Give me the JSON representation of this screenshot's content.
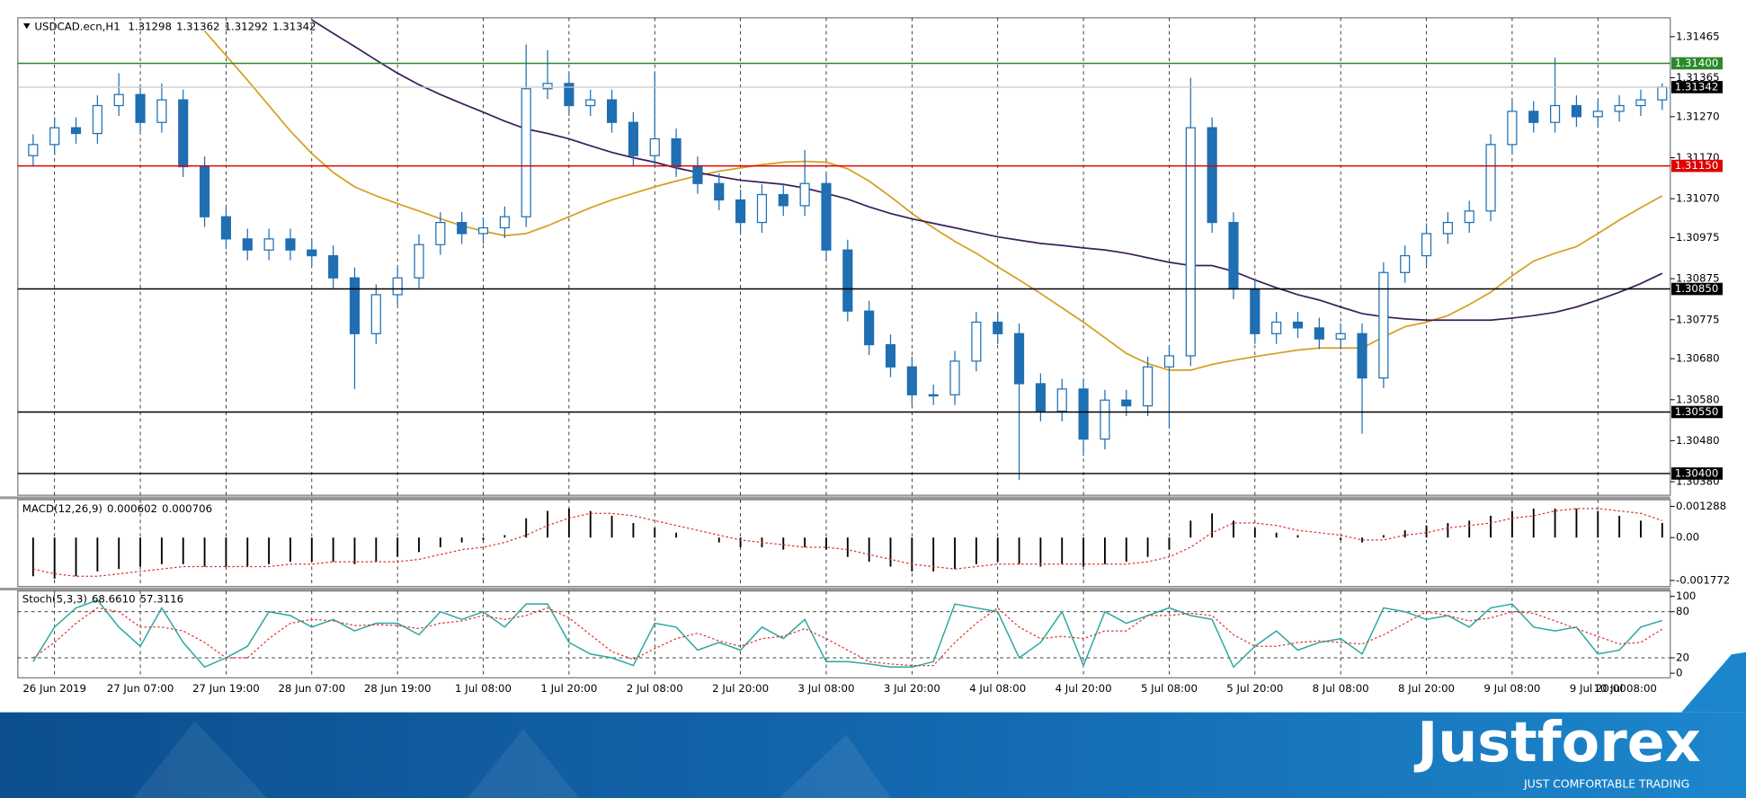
{
  "chart_data": [
    {
      "type": "candlestick",
      "symbol": "USDCAD.ecn,H1",
      "readout": [
        1.31298,
        1.31362,
        1.31292,
        1.31342
      ],
      "categories": [
        null,
        "26 Jun 2019",
        null,
        null,
        null,
        "27 Jun 07:00",
        null,
        null,
        null,
        "27 Jun 19:00",
        null,
        null,
        null,
        "28 Jun 07:00",
        null,
        null,
        null,
        "28 Jun 19:00",
        null,
        null,
        null,
        "1 Jul 08:00",
        null,
        null,
        null,
        "1 Jul 20:00",
        null,
        null,
        null,
        "2 Jul 08:00",
        null,
        null,
        null,
        "2 Jul 20:00",
        null,
        null,
        null,
        "3 Jul 08:00",
        null,
        null,
        null,
        "3 Jul 20:00",
        null,
        null,
        null,
        "4 Jul 08:00",
        null,
        null,
        null,
        "4 Jul 20:00",
        null,
        null,
        null,
        "5 Jul 08:00",
        null,
        null,
        null,
        "5 Jul 20:00",
        null,
        null,
        null,
        "8 Jul 08:00",
        null,
        null,
        null,
        "8 Jul 20:00",
        null,
        null,
        null,
        "9 Jul 08:00",
        null,
        null,
        null,
        "9 Jul 20:00",
        null,
        null,
        null,
        "10 Jul 08:00"
      ],
      "open": [
        1.31175,
        1.31202,
        1.31243,
        1.31229,
        1.31297,
        1.31324,
        1.31256,
        1.31311,
        1.31148,
        1.31026,
        1.30972,
        1.30945,
        1.30972,
        1.30945,
        1.30931,
        1.30877,
        1.30741,
        1.30836,
        1.30877,
        1.30958,
        1.31012,
        1.30985,
        1.30999,
        1.31026,
        1.31338,
        1.31351,
        1.31297,
        1.31311,
        1.31256,
        1.31175,
        1.31216,
        1.31148,
        1.31107,
        1.31067,
        1.31012,
        1.3108,
        1.31053,
        1.31107,
        1.30945,
        1.30796,
        1.30714,
        1.3066,
        1.30592,
        1.30592,
        1.30674,
        1.30769,
        1.30741,
        1.30619,
        1.30552,
        1.30606,
        1.30484,
        1.30579,
        1.30565,
        1.3066,
        1.30687,
        1.31243,
        1.31012,
        1.3085,
        1.30741,
        1.30769,
        1.30755,
        1.30728,
        1.30741,
        1.30633,
        1.3089,
        1.30931,
        1.30985,
        1.31012,
        1.3104,
        1.31202,
        1.31283,
        1.31256,
        1.31297,
        1.3127,
        1.31283,
        1.31297,
        1.31311,
        null
      ],
      "high": [
        1.31227,
        1.31268,
        1.31268,
        1.31322,
        1.31376,
        1.31349,
        1.31351,
        1.31336,
        1.31173,
        1.31051,
        1.30997,
        1.30997,
        1.30997,
        1.3097,
        1.30956,
        1.30902,
        1.30861,
        1.30902,
        1.30983,
        1.31037,
        1.31037,
        1.31024,
        1.31051,
        1.31446,
        1.31432,
        1.31376,
        1.31336,
        1.31336,
        1.31281,
        1.31378,
        1.31241,
        1.31173,
        1.31132,
        1.31092,
        1.31105,
        1.31105,
        1.31189,
        1.31132,
        1.3097,
        1.30821,
        1.30739,
        1.30685,
        1.30617,
        1.30699,
        1.30794,
        1.30794,
        1.30766,
        1.30644,
        1.30631,
        1.30631,
        1.30604,
        1.30604,
        1.30685,
        1.30712,
        1.31365,
        1.31268,
        1.31037,
        1.30875,
        1.30794,
        1.30794,
        1.3078,
        1.30766,
        1.30766,
        1.30915,
        1.30956,
        1.3101,
        1.31037,
        1.31065,
        1.31227,
        1.31308,
        1.31308,
        1.31414,
        1.31322,
        1.31308,
        1.31322,
        1.31336,
        1.31351,
        null
      ],
      "low": [
        1.3115,
        1.31177,
        1.31204,
        1.31204,
        1.31272,
        1.31231,
        1.31231,
        1.31123,
        1.31001,
        1.30947,
        1.3092,
        1.3092,
        1.3092,
        1.30906,
        1.30852,
        1.30606,
        1.30716,
        1.30811,
        1.30852,
        1.30933,
        1.3096,
        1.3096,
        1.30974,
        1.31001,
        1.31313,
        1.31272,
        1.31272,
        1.31231,
        1.3115,
        1.3115,
        1.31123,
        1.31082,
        1.31042,
        1.30987,
        1.30987,
        1.31028,
        1.31028,
        1.3092,
        1.30771,
        1.30689,
        1.30635,
        1.30567,
        1.30567,
        1.30567,
        1.30649,
        1.30716,
        1.30384,
        1.30527,
        1.30527,
        1.30443,
        1.30459,
        1.3054,
        1.3054,
        1.30511,
        1.30662,
        1.30987,
        1.30825,
        1.30716,
        1.30716,
        1.3073,
        1.30703,
        1.30703,
        1.30497,
        1.30608,
        1.30865,
        1.30906,
        1.3096,
        1.30987,
        1.31015,
        1.31177,
        1.31231,
        1.31231,
        1.31245,
        1.31245,
        1.31258,
        1.31272,
        1.31286,
        null
      ],
      "close": [
        1.31202,
        1.31243,
        1.31229,
        1.31297,
        1.31324,
        1.31256,
        1.31311,
        1.31148,
        1.31026,
        1.30972,
        1.30945,
        1.30972,
        1.30945,
        1.30931,
        1.30877,
        1.30741,
        1.30836,
        1.30877,
        1.30958,
        1.31012,
        1.30985,
        1.30999,
        1.31026,
        1.31338,
        1.31351,
        1.31297,
        1.31311,
        1.31256,
        1.31175,
        1.31216,
        1.31148,
        1.31107,
        1.31067,
        1.31012,
        1.3108,
        1.31053,
        1.31107,
        1.30945,
        1.30796,
        1.30714,
        1.3066,
        1.30592,
        1.30592,
        1.30674,
        1.30769,
        1.30741,
        1.30619,
        1.30552,
        1.30606,
        1.30484,
        1.30579,
        1.30565,
        1.3066,
        1.30687,
        1.31243,
        1.31012,
        1.3085,
        1.30741,
        1.30769,
        1.30755,
        1.30728,
        1.30741,
        1.30633,
        1.3089,
        1.30931,
        1.30985,
        1.31012,
        1.3104,
        1.31202,
        1.31283,
        1.31256,
        1.31297,
        1.3127,
        1.31283,
        1.31297,
        1.31311,
        1.31342,
        null
      ],
      "candle_color": "#1f6fb2",
      "series": [
        {
          "color": "#d4a020",
          "values": [
            null,
            null,
            null,
            null,
            null,
            null,
            null,
            null,
            1.31479,
            1.31419,
            1.31359,
            1.31297,
            1.31235,
            1.3118,
            1.31134,
            1.31099,
            1.31077,
            1.31058,
            1.3104,
            1.31021,
            1.31004,
            1.30991,
            1.3098,
            1.30985,
            1.31004,
            1.31026,
            1.31048,
            1.31067,
            1.31083,
            1.31099,
            1.31113,
            1.31126,
            1.31137,
            1.31145,
            1.31153,
            1.31159,
            1.31161,
            1.31159,
            1.31143,
            1.31113,
            1.31075,
            1.31034,
            1.30999,
            1.30966,
            1.30937,
            1.30904,
            1.30872,
            1.30839,
            1.30804,
            1.30769,
            1.30731,
            1.30693,
            1.30668,
            1.30652,
            1.30652,
            1.30666,
            1.30676,
            1.30685,
            1.30693,
            1.30701,
            1.30706,
            1.30706,
            1.30706,
            1.30733,
            1.30758,
            1.30769,
            1.30785,
            1.30812,
            1.30842,
            1.30882,
            1.30918,
            1.30937,
            1.30953,
            1.30985,
            1.31018,
            1.31048,
            1.31077,
            null
          ]
        },
        {
          "color": "#3c1f5c",
          "values": [
            null,
            null,
            null,
            null,
            null,
            null,
            null,
            null,
            null,
            null,
            null,
            null,
            null,
            1.31506,
            1.31473,
            1.31441,
            1.31408,
            1.31376,
            1.31348,
            1.31324,
            1.31302,
            1.31281,
            1.31259,
            1.3124,
            1.31229,
            1.31216,
            1.31199,
            1.31183,
            1.3117,
            1.31159,
            1.31145,
            1.31134,
            1.31124,
            1.31115,
            1.3111,
            1.31105,
            1.31096,
            1.31083,
            1.31069,
            1.3105,
            1.31034,
            1.31021,
            1.3101,
            1.30999,
            1.30988,
            1.30977,
            1.30969,
            1.30961,
            1.30956,
            1.3095,
            1.30945,
            1.30937,
            1.30926,
            1.30915,
            1.30907,
            1.30907,
            1.30893,
            1.30872,
            1.30853,
            1.30836,
            1.30823,
            1.30806,
            1.3079,
            1.30782,
            1.30777,
            1.30774,
            1.30774,
            1.30774,
            1.30774,
            1.30779,
            1.30785,
            1.30793,
            1.30806,
            1.30823,
            1.30842,
            1.30863,
            1.30888,
            null
          ]
        }
      ],
      "ylim": [
        1.30347,
        1.31511
      ],
      "yticks": [
        1.31465,
        1.31365,
        {
          "value": 1.3127,
          "label": "1.31270"
        },
        {
          "value": 1.3117,
          "label": "1.31170"
        },
        {
          "value": 1.3107,
          "label": "1.31070"
        },
        1.30975,
        1.30875,
        1.30775,
        {
          "value": 1.3068,
          "label": "1.30680"
        },
        {
          "value": 1.3058,
          "label": "1.30580"
        },
        {
          "value": 1.3048,
          "label": "1.30480"
        },
        {
          "value": 1.3038,
          "label": "1.30380"
        }
      ],
      "levels": [
        {
          "value": 1.314,
          "label": "1.31400",
          "color": "#2a8a2a"
        },
        {
          "value": 1.3115,
          "label": "1.31150",
          "color": "#e00000"
        },
        {
          "value": 1.3085,
          "label": "1.30850",
          "color": "#000000"
        },
        {
          "value": 1.3055,
          "label": "1.30550",
          "color": "#000000"
        },
        {
          "value": 1.304,
          "label": "1.30400",
          "color": "#000000"
        }
      ],
      "last_price": 1.31342,
      "grid": true
    },
    {
      "type": "macd",
      "title": "MACD(12,26,9)",
      "readout": [
        0.000602,
        0.000706
      ],
      "histogram": [
        -0.0016,
        -0.0017,
        -0.0016,
        -0.0014,
        -0.0013,
        -0.0012,
        -0.0011,
        -0.0011,
        -0.0012,
        -0.0012,
        -0.0012,
        -0.0011,
        -0.001,
        -0.001,
        -0.001,
        -0.0011,
        -0.001,
        -0.0008,
        -0.0006,
        -0.0004,
        -0.0002,
        -0.0001,
        0.0001,
        0.0008,
        0.0011,
        0.0012,
        0.0011,
        0.0009,
        0.0006,
        0.0004,
        0.0002,
        0,
        -0.0002,
        -0.0004,
        -0.0004,
        -0.0005,
        -0.0004,
        -0.0005,
        -0.0008,
        -0.001,
        -0.0012,
        -0.0014,
        -0.0014,
        -0.0013,
        -0.0011,
        -0.001,
        -0.0011,
        -0.0012,
        -0.0011,
        -0.0012,
        -0.0011,
        -0.001,
        -0.0008,
        -0.0005,
        0.0007,
        0.001,
        0.0007,
        0.0004,
        0.0002,
        0.0001,
        0,
        -0.0001,
        -0.0002,
        0.0001,
        0.0003,
        0.0005,
        0.0006,
        0.0007,
        0.0009,
        0.0011,
        0.0012,
        0.0012,
        0.0012,
        0.0011,
        0.0009,
        0.0007,
        0.000602,
        null
      ],
      "signal": [
        -0.0013,
        -0.0015,
        -0.0016,
        -0.0016,
        -0.0015,
        -0.0014,
        -0.0013,
        -0.0012,
        -0.0012,
        -0.0012,
        -0.0012,
        -0.0012,
        -0.0011,
        -0.0011,
        -0.001,
        -0.001,
        -0.001,
        -0.001,
        -0.0009,
        -0.0007,
        -0.0005,
        -0.0004,
        -0.0002,
        0.0001,
        0.0005,
        0.0008,
        0.001,
        0.001,
        0.0009,
        0.0007,
        0.0005,
        0.0003,
        0.0001,
        -0.0001,
        -0.0002,
        -0.0003,
        -0.0004,
        -0.0004,
        -0.0005,
        -0.0007,
        -0.0009,
        -0.0011,
        -0.0012,
        -0.0013,
        -0.0012,
        -0.0011,
        -0.0011,
        -0.0011,
        -0.0011,
        -0.0011,
        -0.0011,
        -0.0011,
        -0.001,
        -0.0008,
        -0.0004,
        0.0002,
        0.0006,
        0.0006,
        0.0005,
        0.0003,
        0.0002,
        0.0001,
        -0.0001,
        -0.0001,
        0.0001,
        0.0002,
        0.0004,
        0.0005,
        0.0006,
        0.0008,
        0.0009,
        0.0011,
        0.0012,
        0.0012,
        0.0011,
        0.001,
        0.000706,
        null
      ],
      "histogram_color": "#000000",
      "signal_color": "#e03030",
      "ylim": [
        -0.002024,
        0.001564
      ],
      "yticks": [
        0.001288,
        {
          "value": 0,
          "label": "0.00"
        },
        -0.001772
      ]
    },
    {
      "type": "stochastic",
      "title": "Stoch(5,3,3)",
      "readout": [
        {
          "value": 68.661,
          "label": "68.6610"
        },
        57.3116
      ],
      "main": [
        15,
        60,
        85,
        95,
        60,
        35,
        85,
        40,
        8,
        20,
        35,
        80,
        75,
        60,
        70,
        55,
        65,
        65,
        50,
        80,
        70,
        80,
        60,
        90,
        90,
        40,
        25,
        20,
        10,
        65,
        60,
        30,
        40,
        30,
        60,
        45,
        70,
        15,
        15,
        12,
        8,
        8,
        15,
        90,
        85,
        80,
        20,
        40,
        80,
        10,
        80,
        65,
        75,
        85,
        75,
        70,
        8,
        35,
        55,
        30,
        40,
        45,
        25,
        85,
        80,
        70,
        75,
        60,
        85,
        90,
        60,
        55,
        60,
        25,
        30,
        60,
        68.661,
        null
      ],
      "signal": [
        20,
        40,
        65,
        85,
        80,
        60,
        60,
        55,
        40,
        20,
        20,
        45,
        65,
        70,
        68,
        62,
        63,
        62,
        58,
        65,
        68,
        75,
        70,
        75,
        85,
        72,
        50,
        28,
        18,
        32,
        45,
        52,
        42,
        35,
        45,
        48,
        58,
        45,
        30,
        15,
        12,
        10,
        10,
        40,
        65,
        85,
        60,
        45,
        48,
        45,
        55,
        55,
        75,
        75,
        78,
        75,
        50,
        35,
        35,
        40,
        42,
        40,
        38,
        50,
        65,
        80,
        75,
        68,
        72,
        80,
        78,
        68,
        58,
        48,
        38,
        40,
        57.3116,
        null
      ],
      "main_color": "#2aa8a0",
      "signal_color": "#e03030",
      "ylim": [
        -6,
        107
      ],
      "yticks": [
        100,
        80,
        20,
        0
      ],
      "levels": [
        80,
        20
      ]
    }
  ],
  "footer": {
    "brand": "Justforex",
    "tagline": "JUST COMFORTABLE TRADING"
  }
}
